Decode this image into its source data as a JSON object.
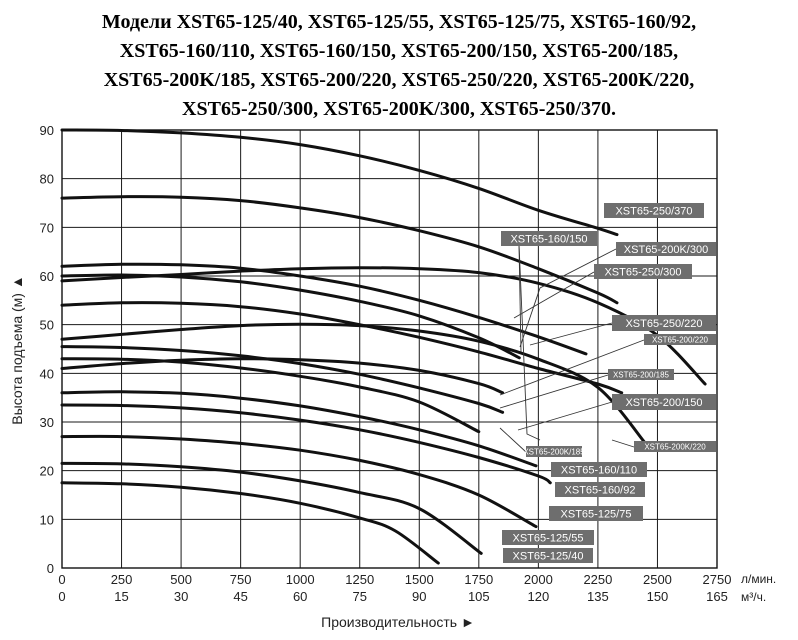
{
  "title_lines": [
    "Модели XST65-125/40, XST65-125/55, XST65-125/75, XST65-160/92,",
    "XST65-160/110, XST65-160/150, XST65-200/150, XST65-200/185,",
    "XST65-200K/185, XST65-200/220, XST65-250/220, XST65-200K/220,",
    "XST65-250/300, XST65-200K/300, XST65-250/370."
  ],
  "chart_data": {
    "type": "line",
    "ylabel": "Высота подъема (м) ▲",
    "xlabel": "Производительность ►",
    "x_unit_top": "л/мин.",
    "x_unit_bottom": "м³/ч.",
    "x_ticks_top": [
      0,
      250,
      500,
      750,
      1000,
      1250,
      1500,
      1750,
      2000,
      2250,
      2500,
      2750
    ],
    "x_ticks_bottom": [
      0,
      15,
      30,
      45,
      60,
      75,
      90,
      105,
      120,
      135,
      150,
      165
    ],
    "xlim": [
      0,
      2750
    ],
    "ylim": [
      0,
      90
    ],
    "y_ticks": [
      0,
      10,
      20,
      30,
      40,
      50,
      60,
      70,
      80,
      90
    ],
    "grid": true,
    "line_color": "#111111",
    "label_bg": "#6e6e6e",
    "series": [
      {
        "name": "XST65-250/370",
        "x": [
          0,
          250,
          500,
          750,
          1000,
          1250,
          1500,
          1750,
          2000,
          2250,
          2330
        ],
        "y": [
          90,
          89.9,
          89.4,
          88.5,
          87,
          84.7,
          81.7,
          78,
          73.5,
          69.8,
          68.5
        ]
      },
      {
        "name": "XST65-250/300",
        "x": [
          0,
          250,
          500,
          750,
          1000,
          1250,
          1500,
          1750,
          2000,
          2250,
          2330
        ],
        "y": [
          76,
          76.3,
          76.2,
          75.5,
          74,
          72,
          69.3,
          66,
          61.5,
          56.5,
          54.5
        ]
      },
      {
        "name": "XST65-200K/300",
        "x": [
          0,
          250,
          500,
          750,
          1000,
          1250,
          1500,
          1750,
          2000,
          2200
        ],
        "y": [
          62,
          62.4,
          62.3,
          61.6,
          60,
          57.9,
          55,
          51.5,
          47.5,
          44
        ]
      },
      {
        "name": "XST65-250/220",
        "x": [
          0,
          250,
          500,
          750,
          1000,
          1250,
          1500,
          1750,
          2000,
          2250,
          2500,
          2700
        ],
        "y": [
          59,
          59.7,
          60.3,
          61,
          61.5,
          61.7,
          61.5,
          60.7,
          58.5,
          54.5,
          47.8,
          37.8
        ]
      },
      {
        "name": "XST65-200/185",
        "x": [
          0,
          250,
          500,
          750,
          1000,
          1250,
          1500,
          1750,
          1920
        ],
        "y": [
          60,
          60.2,
          59.8,
          58.8,
          57.1,
          54.8,
          51.8,
          47.3,
          43.2
        ]
      },
      {
        "name": "XST65-200/220",
        "x": [
          0,
          250,
          500,
          750,
          1000,
          1250,
          1500,
          1750,
          2000,
          2250,
          2350
        ],
        "y": [
          54,
          54.5,
          54.4,
          53.7,
          52.2,
          50,
          47.4,
          44.4,
          41,
          37.8,
          36
        ]
      },
      {
        "name": "XST65-200K/220",
        "x": [
          0,
          250,
          500,
          750,
          1000,
          1250,
          1500,
          1750,
          2000,
          2250,
          2450
        ],
        "y": [
          47,
          48,
          49,
          49.8,
          50.1,
          49.8,
          48.7,
          46.6,
          42.9,
          37.1,
          25.6
        ]
      },
      {
        "name": "XST65-200K/185",
        "x": [
          0,
          250,
          500,
          750,
          1000,
          1250,
          1500,
          1750,
          1850
        ],
        "y": [
          41,
          42,
          42.7,
          43,
          42.8,
          42.1,
          40.6,
          37.9,
          36
        ]
      },
      {
        "name": "XST65-200/150",
        "x": [
          0,
          250,
          500,
          750,
          1000,
          1250,
          1500,
          1750,
          1850
        ],
        "y": [
          45.5,
          45.3,
          44.7,
          43.6,
          42,
          39.8,
          37,
          33.8,
          32
        ]
      },
      {
        "name": "XST65-160/150",
        "x": [
          0,
          250,
          500,
          750,
          1000,
          1250,
          1500,
          1750
        ],
        "y": [
          43,
          42.9,
          42.3,
          41.1,
          39.4,
          37.2,
          34.1,
          28
        ]
      },
      {
        "name": "XST65-160/110",
        "x": [
          0,
          250,
          500,
          750,
          1000,
          1250,
          1500,
          1750,
          1990
        ],
        "y": [
          36,
          36.2,
          35.9,
          34.9,
          33.3,
          31.1,
          28.4,
          25.1,
          21
        ]
      },
      {
        "name": "XST65-160/92",
        "x": [
          0,
          250,
          500,
          750,
          1000,
          1250,
          1500,
          1750,
          2000,
          2050
        ],
        "y": [
          33.5,
          33.4,
          32.9,
          31.9,
          30.4,
          28.4,
          25.8,
          22.7,
          18.9,
          17.5
        ]
      },
      {
        "name": "XST65-125/75",
        "x": [
          0,
          250,
          500,
          750,
          1000,
          1250,
          1500,
          1750,
          1990
        ],
        "y": [
          27,
          27,
          26.5,
          25.6,
          24.2,
          22.1,
          19.2,
          15,
          8.5
        ]
      },
      {
        "name": "XST65-125/55",
        "x": [
          0,
          250,
          500,
          750,
          1000,
          1250,
          1500,
          1760
        ],
        "y": [
          21.5,
          21.4,
          20.8,
          19.7,
          17.9,
          15.5,
          12.2,
          3
        ]
      },
      {
        "name": "XST65-125/40",
        "x": [
          0,
          250,
          500,
          750,
          1000,
          1250,
          1400,
          1580
        ],
        "y": [
          17.5,
          17.3,
          16.6,
          15.3,
          13.3,
          10.3,
          7.6,
          1
        ]
      }
    ],
    "labels": [
      {
        "text": "XST65-250/370",
        "size": "m"
      },
      {
        "text": "XST65-160/150",
        "size": "m"
      },
      {
        "text": "XST65-200K/300",
        "size": "m"
      },
      {
        "text": "XST65-250/300",
        "size": "m"
      },
      {
        "text": "XST65-250/220",
        "size": "m"
      },
      {
        "text": "XST65-200/220",
        "size": "s"
      },
      {
        "text": "XST65-200/185",
        "size": "s"
      },
      {
        "text": "XST65-200/150",
        "size": "m"
      },
      {
        "text": "XST65-200K/185",
        "size": "s"
      },
      {
        "text": "XST65-200K/220",
        "size": "s"
      },
      {
        "text": "XST65-160/110",
        "size": "m"
      },
      {
        "text": "XST65-160/92",
        "size": "m"
      },
      {
        "text": "XST65-125/75",
        "size": "m"
      },
      {
        "text": "XST65-125/55",
        "size": "m"
      },
      {
        "text": "XST65-125/40",
        "size": "m"
      }
    ]
  }
}
